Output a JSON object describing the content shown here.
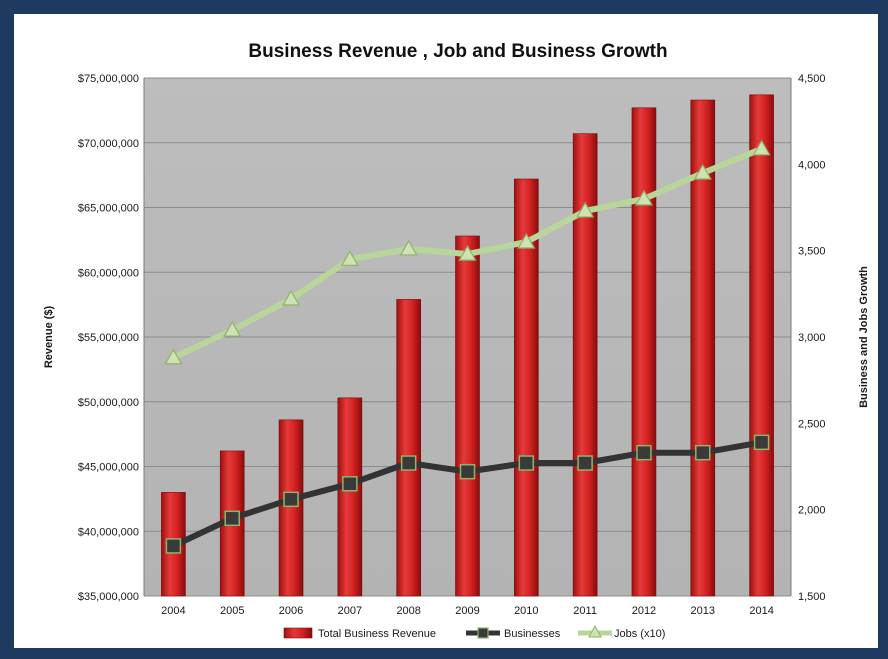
{
  "chart_data": {
    "type": "bar",
    "title": "Business Revenue , Job and Business Growth",
    "categories": [
      "2004",
      "2005",
      "2006",
      "2007",
      "2008",
      "2009",
      "2010",
      "2011",
      "2012",
      "2013",
      "2014"
    ],
    "ylabel": "Revenue ($)",
    "y2label": "Business and Jobs Growth",
    "ylim": [
      35000000,
      75000000
    ],
    "y2lim": [
      1500,
      4500
    ],
    "yticks": [
      "$35,000,000",
      "$40,000,000",
      "$45,000,000",
      "$50,000,000",
      "$55,000,000",
      "$60,000,000",
      "$65,000,000",
      "$70,000,000",
      "$75,000,000"
    ],
    "y2ticks": [
      "1,500",
      "2,000",
      "2,500",
      "3,000",
      "3,500",
      "4,000",
      "4,500"
    ],
    "grid": true,
    "legend_position": "bottom",
    "series": [
      {
        "name": "Total Business Revenue",
        "kind": "bar",
        "axis": "left",
        "color": "#d42020",
        "values": [
          43000000,
          46200000,
          48600000,
          50300000,
          57900000,
          62800000,
          67200000,
          70700000,
          72700000,
          73300000,
          73700000
        ]
      },
      {
        "name": "Businesses",
        "kind": "line",
        "axis": "right",
        "color": "#333333",
        "values": [
          1790,
          1950,
          2060,
          2150,
          2270,
          2220,
          2270,
          2270,
          2330,
          2330,
          2390
        ]
      },
      {
        "name": "Jobs (x10)",
        "kind": "line",
        "axis": "right",
        "color": "#b8d69a",
        "values": [
          2880,
          3040,
          3220,
          3450,
          3510,
          3480,
          3550,
          3730,
          3800,
          3950,
          4090
        ]
      }
    ]
  }
}
